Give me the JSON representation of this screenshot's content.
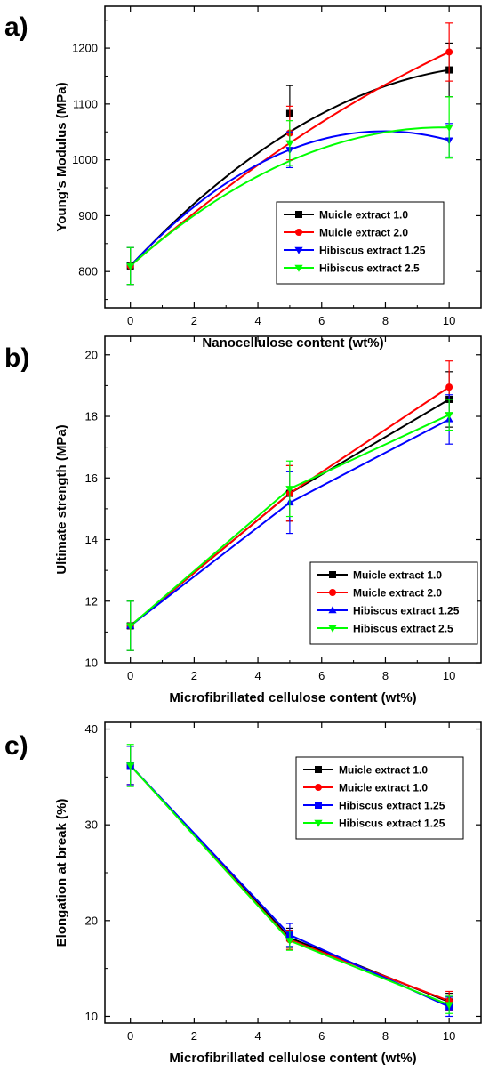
{
  "colors": {
    "black": "#000000",
    "red": "#ff0000",
    "blue": "#0000ff",
    "green": "#00ff00"
  },
  "chart_data": [
    {
      "type": "line",
      "panel_label": "a)",
      "xlabel": "Nanocellulose content (wt%)",
      "ylabel": "Young's Modulus (MPa)",
      "xlim": [
        -0.8,
        11
      ],
      "ylim": [
        735,
        1275
      ],
      "xticks": [
        0,
        2,
        4,
        6,
        8,
        10
      ],
      "yticks": [
        800,
        900,
        1000,
        1100,
        1200
      ],
      "x": [
        0,
        5,
        10
      ],
      "grid": false,
      "legend_position": "center-right",
      "series": [
        {
          "name": "Muicle extract 1.0",
          "color": "#000000",
          "marker": "square",
          "values": [
            810,
            1083,
            1161
          ],
          "errors": [
            33,
            50,
            48
          ],
          "fit": [
            810,
            1050,
            1161
          ]
        },
        {
          "name": "Muicle extract 2.0",
          "color": "#ff0000",
          "marker": "circle",
          "values": [
            810,
            1048,
            1193
          ],
          "errors": [
            33,
            48,
            52
          ],
          "fit": [
            810,
            1030,
            1193
          ]
        },
        {
          "name": "Hibiscus extract 1.25",
          "color": "#0000ff",
          "marker": "triangle-down",
          "values": [
            810,
            1018,
            1035
          ],
          "errors": [
            33,
            32,
            30
          ],
          "fit": [
            810,
            1018,
            1035
          ]
        },
        {
          "name": "Hibiscus extract 2.5",
          "color": "#00ff00",
          "marker": "triangle-down",
          "values": [
            810,
            1030,
            1058
          ],
          "errors": [
            33,
            40,
            55
          ],
          "fit": [
            810,
            998,
            1058
          ]
        }
      ]
    },
    {
      "type": "line",
      "panel_label": "b)",
      "xlabel": "Microfibrillated cellulose content (wt%)",
      "ylabel": "Ultimate strength (MPa)",
      "xlim": [
        -0.8,
        11
      ],
      "ylim": [
        10,
        20.6
      ],
      "xticks": [
        0,
        2,
        4,
        6,
        8,
        10
      ],
      "yticks": [
        10,
        12,
        14,
        16,
        18,
        20
      ],
      "x": [
        0,
        5,
        10
      ],
      "grid": false,
      "legend_position": "bottom-right",
      "series": [
        {
          "name": "Muicle extract 1.0",
          "color": "#000000",
          "marker": "square",
          "values": [
            11.2,
            15.5,
            18.55
          ],
          "errors": [
            0.8,
            0.9,
            0.9
          ]
        },
        {
          "name": "Muicle extract 2.0",
          "color": "#ff0000",
          "marker": "circle",
          "values": [
            11.2,
            15.5,
            18.95
          ],
          "errors": [
            0.8,
            0.9,
            0.85
          ]
        },
        {
          "name": "Hibiscus extract 1.25",
          "color": "#0000ff",
          "marker": "triangle-up",
          "values": [
            11.2,
            15.2,
            17.9
          ],
          "errors": [
            0.8,
            1.0,
            0.8
          ]
        },
        {
          "name": "Hibiscus extract 2.5",
          "color": "#00ff00",
          "marker": "triangle-down",
          "values": [
            11.2,
            15.65,
            18.05
          ],
          "errors": [
            0.8,
            0.9,
            0.5
          ]
        }
      ]
    },
    {
      "type": "line",
      "panel_label": "c)",
      "xlabel": "Microfibrillated cellulose content (wt%)",
      "ylabel": "Elongation at break (%)",
      "xlim": [
        -0.8,
        11
      ],
      "ylim": [
        9.3,
        40.7
      ],
      "xticks": [
        0,
        2,
        4,
        6,
        8,
        10
      ],
      "yticks": [
        10,
        20,
        30,
        40
      ],
      "x": [
        0,
        5,
        10
      ],
      "grid": false,
      "legend_position": "top-right",
      "series": [
        {
          "name": "Muicle extract 1.0",
          "color": "#000000",
          "marker": "square",
          "values": [
            36.2,
            18.2,
            11.5
          ],
          "errors": [
            2.0,
            1.0,
            0.9
          ]
        },
        {
          "name": "Muicle extract 1.0",
          "color": "#ff0000",
          "marker": "circle",
          "values": [
            36.2,
            18.0,
            11.6
          ],
          "errors": [
            2.0,
            1.0,
            1.0
          ]
        },
        {
          "name": "Hibiscus extract 1.25",
          "color": "#0000ff",
          "marker": "square",
          "values": [
            36.2,
            18.5,
            11.0
          ],
          "errors": [
            2.0,
            1.2,
            1.0
          ]
        },
        {
          "name": "Hibiscus extract 1.25",
          "color": "#00ff00",
          "marker": "triangle-down",
          "values": [
            36.2,
            17.9,
            11.2
          ],
          "errors": [
            2.2,
            1.0,
            0.9
          ]
        }
      ]
    }
  ]
}
